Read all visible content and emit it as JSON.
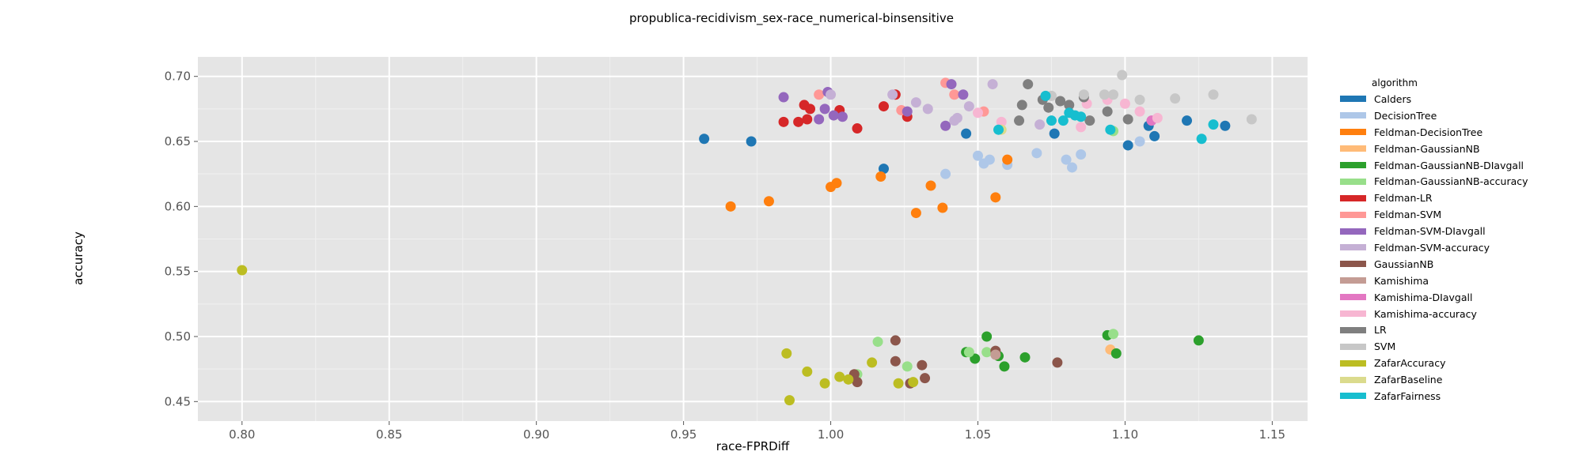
{
  "chart_data": {
    "type": "scatter",
    "title": "propublica-recidivism_sex-race_numerical-binsensitive",
    "xlabel": "race-FPRDiff",
    "ylabel": "accuracy",
    "xlim": [
      0.785,
      1.162
    ],
    "ylim": [
      0.435,
      0.715
    ],
    "xticks": [
      "0.80",
      "0.85",
      "0.90",
      "0.95",
      "1.00",
      "1.05",
      "1.10",
      "1.15"
    ],
    "yticks": [
      "0.45",
      "0.50",
      "0.55",
      "0.60",
      "0.65",
      "0.70"
    ],
    "grid": true,
    "legend_title": "algorithm",
    "legend_position": "right",
    "series": [
      {
        "name": "Calders",
        "color": "#1f77b4",
        "points": [
          [
            0.957,
            0.652
          ],
          [
            0.973,
            0.65
          ],
          [
            1.018,
            0.629
          ],
          [
            1.046,
            0.656
          ],
          [
            1.076,
            0.656
          ],
          [
            1.101,
            0.647
          ],
          [
            1.108,
            0.662
          ],
          [
            1.11,
            0.654
          ],
          [
            1.121,
            0.666
          ],
          [
            1.134,
            0.662
          ]
        ]
      },
      {
        "name": "DecisionTree",
        "color": "#aec7e8",
        "points": [
          [
            1.039,
            0.625
          ],
          [
            1.05,
            0.639
          ],
          [
            1.052,
            0.633
          ],
          [
            1.054,
            0.636
          ],
          [
            1.06,
            0.632
          ],
          [
            1.07,
            0.641
          ],
          [
            1.08,
            0.636
          ],
          [
            1.082,
            0.63
          ],
          [
            1.085,
            0.64
          ],
          [
            1.105,
            0.65
          ]
        ]
      },
      {
        "name": "Feldman-DecisionTree",
        "color": "#ff7f0e",
        "points": [
          [
            0.966,
            0.6
          ],
          [
            0.979,
            0.604
          ],
          [
            1.0,
            0.615
          ],
          [
            1.002,
            0.618
          ],
          [
            1.017,
            0.623
          ],
          [
            1.029,
            0.595
          ],
          [
            1.034,
            0.616
          ],
          [
            1.038,
            0.599
          ],
          [
            1.056,
            0.607
          ],
          [
            1.06,
            0.636
          ]
        ]
      },
      {
        "name": "Feldman-GaussianNB",
        "color": "#ffbb78",
        "points": [
          [
            1.095,
            0.49
          ]
        ]
      },
      {
        "name": "Feldman-GaussianNB-DIavgall",
        "color": "#2ca02c",
        "points": [
          [
            1.046,
            0.488
          ],
          [
            1.049,
            0.483
          ],
          [
            1.053,
            0.5
          ],
          [
            1.057,
            0.485
          ],
          [
            1.059,
            0.477
          ],
          [
            1.066,
            0.484
          ],
          [
            1.094,
            0.501
          ],
          [
            1.097,
            0.487
          ],
          [
            1.125,
            0.497
          ]
        ]
      },
      {
        "name": "Feldman-GaussianNB-accuracy",
        "color": "#98df8a",
        "points": [
          [
            1.009,
            0.471
          ],
          [
            1.016,
            0.496
          ],
          [
            1.026,
            0.477
          ],
          [
            1.047,
            0.488
          ],
          [
            1.053,
            0.488
          ],
          [
            1.096,
            0.502
          ],
          [
            1.096,
            0.658
          ]
        ]
      },
      {
        "name": "Feldman-LR",
        "color": "#d62728",
        "points": [
          [
            0.984,
            0.665
          ],
          [
            0.989,
            0.665
          ],
          [
            0.991,
            0.678
          ],
          [
            0.992,
            0.667
          ],
          [
            0.993,
            0.675
          ],
          [
            1.003,
            0.674
          ],
          [
            1.009,
            0.66
          ],
          [
            1.018,
            0.677
          ],
          [
            1.022,
            0.686
          ],
          [
            1.026,
            0.669
          ]
        ]
      },
      {
        "name": "Feldman-SVM",
        "color": "#ff9896",
        "points": [
          [
            0.996,
            0.686
          ],
          [
            1.024,
            0.674
          ],
          [
            1.039,
            0.695
          ],
          [
            1.042,
            0.686
          ],
          [
            1.052,
            0.673
          ]
        ]
      },
      {
        "name": "Feldman-SVM-DIavgall",
        "color": "#9467bd",
        "points": [
          [
            0.984,
            0.684
          ],
          [
            0.996,
            0.667
          ],
          [
            0.998,
            0.675
          ],
          [
            0.999,
            0.688
          ],
          [
            1.001,
            0.67
          ],
          [
            1.004,
            0.669
          ],
          [
            1.026,
            0.673
          ],
          [
            1.039,
            0.662
          ],
          [
            1.041,
            0.694
          ],
          [
            1.045,
            0.686
          ]
        ]
      },
      {
        "name": "Feldman-SVM-accuracy",
        "color": "#c5b0d5",
        "points": [
          [
            1.0,
            0.686
          ],
          [
            1.021,
            0.686
          ],
          [
            1.029,
            0.68
          ],
          [
            1.033,
            0.675
          ],
          [
            1.042,
            0.666
          ],
          [
            1.043,
            0.668
          ],
          [
            1.047,
            0.677
          ],
          [
            1.055,
            0.694
          ],
          [
            1.071,
            0.663
          ]
        ]
      },
      {
        "name": "GaussianNB",
        "color": "#8c564b",
        "points": [
          [
            1.008,
            0.471
          ],
          [
            1.009,
            0.465
          ],
          [
            1.022,
            0.497
          ],
          [
            1.022,
            0.481
          ],
          [
            1.027,
            0.464
          ],
          [
            1.031,
            0.478
          ],
          [
            1.032,
            0.468
          ],
          [
            1.056,
            0.489
          ],
          [
            1.077,
            0.48
          ]
        ]
      },
      {
        "name": "Kamishima",
        "color": "#c49c94",
        "points": [
          [
            1.056,
            0.486
          ]
        ]
      },
      {
        "name": "Kamishima-DIavgall",
        "color": "#e377c2",
        "points": [
          [
            1.109,
            0.666
          ]
        ]
      },
      {
        "name": "Kamishima-accuracy",
        "color": "#f7b6d2",
        "points": [
          [
            1.05,
            0.672
          ],
          [
            1.058,
            0.665
          ],
          [
            1.085,
            0.661
          ],
          [
            1.087,
            0.679
          ],
          [
            1.094,
            0.682
          ],
          [
            1.1,
            0.679
          ],
          [
            1.105,
            0.673
          ],
          [
            1.111,
            0.668
          ]
        ]
      },
      {
        "name": "LR",
        "color": "#7f7f7f",
        "points": [
          [
            1.064,
            0.666
          ],
          [
            1.065,
            0.678
          ],
          [
            1.067,
            0.694
          ],
          [
            1.072,
            0.682
          ],
          [
            1.074,
            0.676
          ],
          [
            1.078,
            0.681
          ],
          [
            1.081,
            0.678
          ],
          [
            1.086,
            0.684
          ],
          [
            1.088,
            0.666
          ],
          [
            1.094,
            0.673
          ],
          [
            1.101,
            0.667
          ]
        ]
      },
      {
        "name": "SVM",
        "color": "#c7c7c7",
        "points": [
          [
            1.075,
            0.685
          ],
          [
            1.086,
            0.686
          ],
          [
            1.093,
            0.686
          ],
          [
            1.096,
            0.686
          ],
          [
            1.099,
            0.701
          ],
          [
            1.105,
            0.682
          ],
          [
            1.117,
            0.683
          ],
          [
            1.13,
            0.686
          ],
          [
            1.143,
            0.667
          ]
        ]
      },
      {
        "name": "ZafarAccuracy",
        "color": "#bcbd22",
        "points": [
          [
            0.8,
            0.551
          ],
          [
            0.985,
            0.487
          ],
          [
            0.986,
            0.451
          ],
          [
            0.992,
            0.473
          ],
          [
            0.998,
            0.464
          ],
          [
            1.003,
            0.469
          ],
          [
            1.006,
            0.467
          ],
          [
            1.014,
            0.48
          ],
          [
            1.023,
            0.464
          ],
          [
            1.028,
            0.465
          ]
        ]
      },
      {
        "name": "ZafarBaseline",
        "color": "#dbdb8d",
        "points": [
          [
            1.058,
            0.659
          ]
        ]
      },
      {
        "name": "ZafarFairness",
        "color": "#17becf",
        "points": [
          [
            1.057,
            0.659
          ],
          [
            1.073,
            0.685
          ],
          [
            1.075,
            0.666
          ],
          [
            1.079,
            0.666
          ],
          [
            1.081,
            0.672
          ],
          [
            1.083,
            0.67
          ],
          [
            1.085,
            0.669
          ],
          [
            1.095,
            0.659
          ],
          [
            1.126,
            0.652
          ],
          [
            1.13,
            0.663
          ]
        ]
      }
    ]
  }
}
